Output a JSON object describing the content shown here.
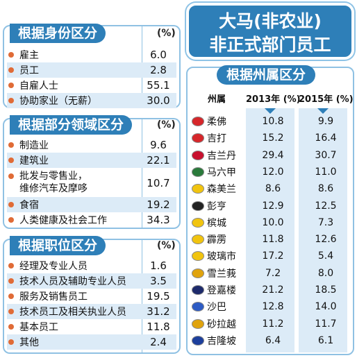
{
  "title": {
    "line1": "大马(非农业)",
    "line2": "非正式部门员工"
  },
  "identity": {
    "heading": "根据身份区分",
    "unit": "(%)",
    "rows": [
      {
        "label": "雇主",
        "value": "6.0"
      },
      {
        "label": "员工",
        "value": "2.8"
      },
      {
        "label": "自雇人士",
        "value": "55.1"
      },
      {
        "label": "协助家业（无薪）",
        "value": "30.0"
      }
    ]
  },
  "sector": {
    "heading": "根据部分领域区分",
    "unit": "(%)",
    "rows": [
      {
        "label": "制造业",
        "value": "9.6"
      },
      {
        "label": "建筑业",
        "value": "22.1"
      },
      {
        "label": "批发与零售业，\n维修汽车及摩哆",
        "value": "10.7"
      },
      {
        "label": "食宿",
        "value": "19.2"
      },
      {
        "label": "人类健康及社会工作",
        "value": "34.3"
      }
    ]
  },
  "occupation": {
    "heading": "根据职位区分",
    "unit": "(%)",
    "rows": [
      {
        "label": "经理及专业人员",
        "value": "1.6"
      },
      {
        "label": "技术人员及辅助专业人员",
        "value": "3.5"
      },
      {
        "label": "服务及销售员工",
        "value": "19.5"
      },
      {
        "label": "技术员工及相关执业人员",
        "value": "31.2"
      },
      {
        "label": "基本员工",
        "value": "11.8"
      },
      {
        "label": "其他",
        "value": "2.4"
      }
    ]
  },
  "states": {
    "heading": "根据州属区分",
    "col_state": "州属",
    "col_2013": "2013年 (%)",
    "col_2015": "2015年 (%)",
    "rows": [
      {
        "name": "柔佛",
        "y2013": "10.8",
        "y2015": "9.9",
        "flag_color": "#d6262a"
      },
      {
        "name": "吉打",
        "y2013": "15.2",
        "y2015": "16.4",
        "flag_color": "#d6262a"
      },
      {
        "name": "吉兰丹",
        "y2013": "29.4",
        "y2015": "30.7",
        "flag_color": "#c8102e"
      },
      {
        "name": "马六甲",
        "y2013": "12.0",
        "y2015": "11.0",
        "flag_color": "#2a7a3b"
      },
      {
        "name": "森美兰",
        "y2013": "8.6",
        "y2015": "8.6",
        "flag_color": "#f1c40f"
      },
      {
        "name": "彭亨",
        "y2013": "12.9",
        "y2015": "12.5",
        "flag_color": "#222222"
      },
      {
        "name": "槟城",
        "y2013": "10.0",
        "y2015": "7.3",
        "flag_color": "#f1c40f"
      },
      {
        "name": "霹雳",
        "y2013": "11.8",
        "y2015": "12.6",
        "flag_color": "#f1c40f"
      },
      {
        "name": "玻璃市",
        "y2013": "17.2",
        "y2015": "5.4",
        "flag_color": "#f1c40f"
      },
      {
        "name": "雪兰莪",
        "y2013": "7.2",
        "y2015": "8.0",
        "flag_color": "#e0a30d"
      },
      {
        "name": "登嘉楼",
        "y2013": "21.2",
        "y2015": "18.5",
        "flag_color": "#1d2a6b"
      },
      {
        "name": "沙巴",
        "y2013": "12.8",
        "y2015": "14.0",
        "flag_color": "#2d5bc4"
      },
      {
        "name": "砂拉越",
        "y2013": "11.2",
        "y2015": "11.7",
        "flag_color": "#e0a30d"
      },
      {
        "name": "吉隆坡",
        "y2013": "6.4",
        "y2015": "6.1",
        "flag_color": "#1d3f9c"
      }
    ]
  },
  "colors": {
    "accent": "#2e7fb8",
    "row_alt": "#dcebf7",
    "border": "#8fc1e3",
    "bullet": "#e06b36"
  }
}
